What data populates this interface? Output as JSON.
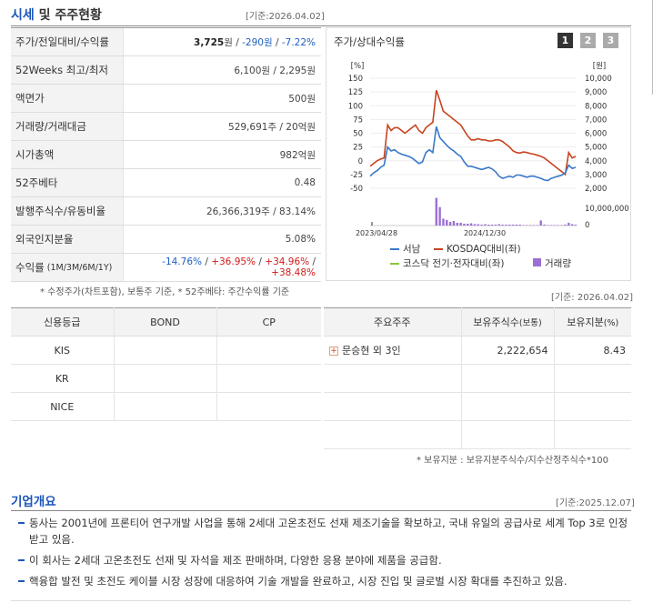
{
  "header": {
    "title_a": "시세",
    "title_b": "및 주주현황",
    "basis": "[기준:2026.04.02]"
  },
  "stats": [
    {
      "label": "주가/전일대비/수익률",
      "v1": "3,725",
      "v1u": "원",
      "sep1": " / ",
      "v2": "-290원",
      "sep2": " / ",
      "v3": "-7.22%"
    },
    {
      "label": "52Weeks 최고/최저",
      "value": "6,100원 / 2,295원"
    },
    {
      "label": "액면가",
      "value": "500원"
    },
    {
      "label": "거래량/거래대금",
      "value": "529,691주 / 20억원"
    },
    {
      "label": "시가총액",
      "value": "982억원"
    },
    {
      "label": "52주베타",
      "value": "0.48"
    },
    {
      "label": "발행주식수/유동비율",
      "value": "26,366,319주 / 83.14%"
    },
    {
      "label": "외국인지분율",
      "value": "5.08%"
    }
  ],
  "returns": {
    "label": "수익률",
    "sub": "(1M/3M/6M/1Y)",
    "r1": "-14.76%",
    "r2": "+36.95%",
    "r3": "+34.96%",
    "r4": "+38.48%"
  },
  "stats_note": "* 수정주가(차트포함), 보통주 기준, * 52주베타: 주간수익률 기준",
  "chart": {
    "title": "주가/상대수익률",
    "buttons": [
      "1",
      "2",
      "3"
    ],
    "left_unit": "[%]",
    "right_unit": "[원]",
    "vol_label": "10,000,000",
    "vol_zero": "0",
    "x_labels": [
      "2023/04/28",
      "2024/12/30"
    ],
    "legend": [
      "서남",
      "KOSDAQ대비(좌)",
      "코스닥 전기·전자대비(좌)",
      "거래량"
    ],
    "colors": {
      "stock": "#3a78c9",
      "kosdaq": "#c8431f",
      "sector": "#8ac43f",
      "volume": "#9b6fd6"
    }
  },
  "chart_data": {
    "type": "line",
    "left_ticks": [
      150,
      125,
      100,
      75,
      50,
      25,
      0,
      -25,
      -50
    ],
    "right_ticks": [
      "10,000",
      "9,000",
      "8,000",
      "7,000",
      "6,000",
      "5,000",
      "4,000",
      "3,000",
      "2,000"
    ],
    "ylim": [
      -50,
      150
    ],
    "x_count": 60,
    "series": [
      {
        "name": "서남",
        "values": [
          -28,
          -22,
          -18,
          -12,
          -8,
          25,
          18,
          20,
          15,
          12,
          10,
          8,
          5,
          0,
          -5,
          -2,
          15,
          20,
          15,
          62,
          42,
          35,
          28,
          22,
          18,
          12,
          8,
          -2,
          -10,
          -10,
          -12,
          -14,
          -16,
          -14,
          -12,
          -15,
          -20,
          -28,
          -32,
          -30,
          -28,
          -30,
          -26,
          -26,
          -28,
          -30,
          -28,
          -28,
          -30,
          -32,
          -35,
          -36,
          -32,
          -30,
          -28,
          -26,
          -22,
          -8,
          -14,
          -12
        ]
      },
      {
        "name": "KOSDAQ대비(좌)",
        "values": [
          -10,
          -5,
          0,
          3,
          5,
          65,
          55,
          60,
          60,
          55,
          50,
          55,
          60,
          65,
          55,
          50,
          60,
          65,
          70,
          128,
          110,
          90,
          85,
          80,
          75,
          70,
          65,
          55,
          45,
          38,
          38,
          40,
          38,
          38,
          36,
          36,
          38,
          38,
          35,
          30,
          25,
          18,
          15,
          14,
          16,
          15,
          13,
          12,
          10,
          8,
          5,
          0,
          -5,
          -10,
          -15,
          -20,
          -25,
          15,
          5,
          8
        ]
      }
    ],
    "volume": [
      0,
      0,
      0,
      0,
      0,
      0,
      0,
      0,
      0,
      0,
      0,
      0,
      0,
      0,
      0,
      0,
      0,
      0,
      0,
      6,
      4,
      1.5,
      1.2,
      0.8,
      1,
      0.6,
      0.6,
      0.4,
      0.4,
      0.5,
      0.3,
      0.3,
      0.2,
      0.3,
      0.2,
      0.2,
      0.2,
      0.3,
      0.2,
      0.2,
      0.2,
      0.2,
      0.2,
      0.2,
      0.1,
      0.1,
      0.1,
      0.1,
      0.1,
      1.1,
      0.2,
      0.1,
      0.1,
      0.1,
      0.1,
      0.1,
      0.2,
      0.6,
      0.3,
      0.2
    ]
  },
  "shareholders_basis": "[기준: 2026.04.02]",
  "credit": {
    "headers": [
      "신용등급",
      "BOND",
      "CP"
    ],
    "rows": [
      [
        "KIS",
        "",
        ""
      ],
      [
        "KR",
        "",
        ""
      ],
      [
        "NICE",
        "",
        ""
      ]
    ]
  },
  "holders": {
    "headers": [
      "주요주주",
      "보유주식수",
      "(보통)",
      "보유지분",
      "(%)"
    ],
    "rows": [
      {
        "name": "문승현 외 3인",
        "shares": "2,222,654",
        "pct": "8.43"
      }
    ],
    "note": "* 보유지분 : 보유지분주식수/지수산정주식수*100"
  },
  "company": {
    "title": "기업개요",
    "basis": "[기준:2025.12.07]",
    "lines": [
      "동사는 2001년에 프론티어 연구개발 사업을 통해 2세대 고온초전도 선재 제조기술을 확보하고, 국내 유일의 공급사로 세계 Top 3로 인정받고 있음.",
      "이 회사는 2세대 고온초전도 선재 및 자석을 제조 판매하며, 다양한 응용 분야에 제품을 공급함.",
      "핵융합 발전 및 초전도 케이블 시장 성장에 대응하여 기술 개발을 완료하고, 시장 진입 및 글로벌 시장 확대를 추진하고 있음."
    ]
  }
}
